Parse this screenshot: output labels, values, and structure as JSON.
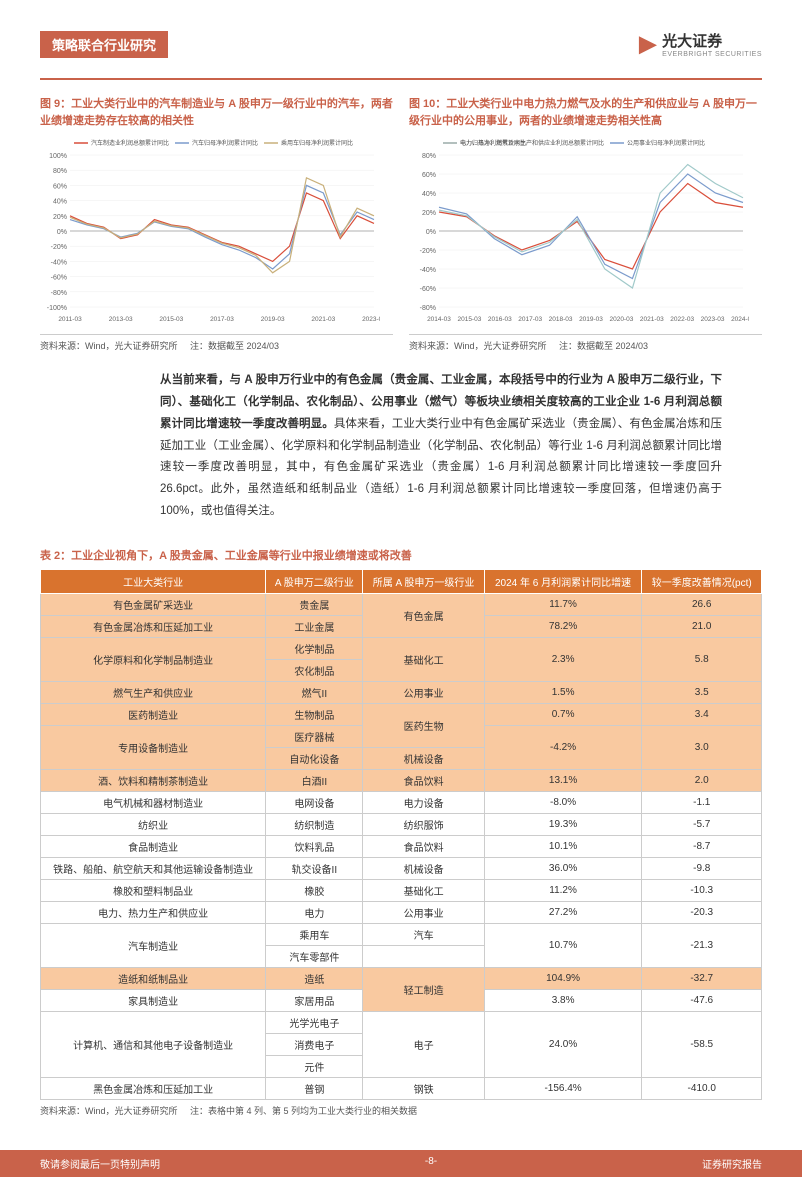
{
  "header": {
    "tag": "策略联合行业研究",
    "logo_text": "光大证券",
    "logo_sub": "EVERBRIGHT SECURITIES"
  },
  "chart_left": {
    "title": "图 9：工业大类行业中的汽车制造业与 A 股申万一级行业中的汽车，两者业绩增速走势存在较高的相关性",
    "legend": [
      "汽车制造业利润总额累计同比",
      "汽车归母净利润累计同比",
      "乘用车归母净利润累计同比"
    ],
    "x_labels": [
      "2011-03",
      "2013-03",
      "2015-03",
      "2017-03",
      "2019-03",
      "2021-03",
      "2023-03"
    ],
    "y_min": -100,
    "y_max": 100,
    "y_step": 20,
    "series": [
      {
        "color": "#d94e3a",
        "width": 1.2,
        "pts": [
          20,
          10,
          5,
          -10,
          -5,
          15,
          8,
          5,
          -5,
          -15,
          -20,
          -30,
          -40,
          -20,
          50,
          40,
          -10,
          20,
          10
        ]
      },
      {
        "color": "#7b9bcc",
        "width": 1.2,
        "pts": [
          15,
          8,
          3,
          -8,
          -3,
          12,
          6,
          3,
          -8,
          -18,
          -25,
          -35,
          -50,
          -30,
          60,
          50,
          -5,
          25,
          15
        ]
      },
      {
        "color": "#c9b07a",
        "width": 1.2,
        "pts": [
          18,
          9,
          4,
          -9,
          -4,
          13,
          7,
          4,
          -6,
          -16,
          -22,
          -32,
          -55,
          -40,
          70,
          60,
          -8,
          30,
          20
        ]
      }
    ],
    "source": "资料来源：Wind，光大证券研究所",
    "note": "注：数据截至 2024/03"
  },
  "chart_right": {
    "title": "图 10：工业大类行业中电力热力燃气及水的生产和供应业与 A 股申万一级行业中的公用事业，两者的业绩增速走势相关性高",
    "legend": [
      "电力、热力、燃气及水生产和供应业利润总额累计同比",
      "公用事业归母净利润累计同比",
      "电力归母净利润累计同比"
    ],
    "x_labels": [
      "2014-03",
      "2015-03",
      "2016-03",
      "2017-03",
      "2018-03",
      "2019-03",
      "2020-03",
      "2021-03",
      "2022-03",
      "2023-03",
      "2024-03"
    ],
    "y_min": -80,
    "y_max": 80,
    "y_step": 20,
    "series": [
      {
        "color": "#d94e3a",
        "width": 1.2,
        "pts": [
          20,
          15,
          -5,
          -20,
          -10,
          10,
          -30,
          -40,
          20,
          50,
          30,
          25
        ]
      },
      {
        "color": "#7b9bcc",
        "width": 1.2,
        "pts": [
          25,
          18,
          -8,
          -25,
          -15,
          15,
          -35,
          -50,
          30,
          60,
          40,
          30
        ]
      },
      {
        "color": "#a0c9c9",
        "width": 1.2,
        "pts": [
          22,
          16,
          -6,
          -22,
          -12,
          12,
          -40,
          -60,
          40,
          70,
          50,
          35
        ]
      }
    ],
    "source": "资料来源：Wind，光大证券研究所",
    "note": "注：数据截至 2024/03"
  },
  "paragraph": {
    "bold": "从当前来看，与 A 股申万行业中的有色金属（贵金属、工业金属，本段括号中的行业为 A 股申万二级行业，下同）、基础化工（化学制品、农化制品）、公用事业（燃气）等板块业绩相关度较高的工业企业 1-6 月利润总额累计同比增速较一季度改善明显。",
    "rest": "具体来看，工业大类行业中有色金属矿采选业（贵金属）、有色金属冶炼和压延加工业（工业金属）、化学原料和化学制品制造业（化学制品、农化制品）等行业 1-6 月利润总额累计同比增速较一季度改善明显，其中，有色金属矿采选业（贵金属）1-6 月利润总额累计同比增速较一季度回升 26.6pct。此外，虽然造纸和纸制品业（造纸）1-6 月利润总额累计同比增速较一季度回落，但增速仍高于 100%，或也值得关注。"
  },
  "table": {
    "title": "表 2：工业企业视角下，A 股贵金属、工业金属等行业中报业绩增速或将改善",
    "columns": [
      "工业大类行业",
      "A 股申万二级行业",
      "所属 A 股申万一级行业",
      "2024 年 6 月利润累计同比增速",
      "较一季度改善情况(pct)"
    ],
    "rows": [
      {
        "cls": "orange",
        "cells": [
          "有色金属矿采选业",
          "贵金属",
          "有色金属",
          "11.7%",
          "26.6"
        ],
        "merge_l1": 2
      },
      {
        "cls": "orange",
        "cells": [
          "有色金属冶炼和压延加工业",
          "工业金属",
          "",
          "78.2%",
          "21.0"
        ]
      },
      {
        "cls": "orange",
        "cells": [
          "化学原料和化学制品制造业",
          "化学制品",
          "基础化工",
          "2.3%",
          "5.8"
        ],
        "merge_l2": 2,
        "merge_l1": 2,
        "merge_v": 2,
        "merge_pct": 2
      },
      {
        "cls": "orange",
        "cells": [
          "",
          "农化制品",
          "",
          "",
          ""
        ]
      },
      {
        "cls": "orange",
        "cells": [
          "燃气生产和供应业",
          "燃气II",
          "公用事业",
          "1.5%",
          "3.5"
        ]
      },
      {
        "cls": "orange",
        "cells": [
          "医药制造业",
          "生物制品",
          "医药生物",
          "0.7%",
          "3.4"
        ],
        "merge_l1": 2
      },
      {
        "cls": "orange",
        "cells": [
          "专用设备制造业",
          "医疗器械",
          "",
          "-4.2%",
          "3.0"
        ],
        "merge_l2": 2,
        "merge_v": 2,
        "merge_pct": 2
      },
      {
        "cls": "orange",
        "cells": [
          "",
          "自动化设备",
          "机械设备",
          "",
          ""
        ]
      },
      {
        "cls": "orange",
        "cells": [
          "酒、饮料和精制茶制造业",
          "白酒II",
          "食品饮料",
          "13.1%",
          "2.0"
        ]
      },
      {
        "cls": "white",
        "cells": [
          "电气机械和器材制造业",
          "电网设备",
          "电力设备",
          "-8.0%",
          "-1.1"
        ]
      },
      {
        "cls": "white",
        "cells": [
          "纺织业",
          "纺织制造",
          "纺织服饰",
          "19.3%",
          "-5.7"
        ]
      },
      {
        "cls": "white",
        "cells": [
          "食品制造业",
          "饮料乳品",
          "食品饮料",
          "10.1%",
          "-8.7"
        ]
      },
      {
        "cls": "white",
        "cells": [
          "铁路、船舶、航空航天和其他运输设备制造业",
          "轨交设备II",
          "机械设备",
          "36.0%",
          "-9.8"
        ]
      },
      {
        "cls": "white",
        "cells": [
          "橡胶和塑料制品业",
          "橡胶",
          "基础化工",
          "11.2%",
          "-10.3"
        ]
      },
      {
        "cls": "white",
        "cells": [
          "电力、热力生产和供应业",
          "电力",
          "公用事业",
          "27.2%",
          "-20.3"
        ]
      },
      {
        "cls": "white",
        "cells": [
          "汽车制造业",
          "乘用车",
          "汽车",
          "10.7%",
          "-21.3"
        ],
        "merge_l2": 2,
        "merge_v": 2,
        "merge_pct": 2
      },
      {
        "cls": "white",
        "cells": [
          "",
          "汽车零部件",
          "",
          "",
          ""
        ]
      },
      {
        "cls": "orange",
        "cells": [
          "造纸和纸制品业",
          "造纸",
          "轻工制造",
          "104.9%",
          "-32.7"
        ],
        "merge_l1": 2
      },
      {
        "cls": "white",
        "cells": [
          "家具制造业",
          "家居用品",
          "",
          "3.8%",
          "-47.6"
        ]
      },
      {
        "cls": "white",
        "cells": [
          "计算机、通信和其他电子设备制造业",
          "光学光电子",
          "电子",
          "24.0%",
          "-58.5"
        ],
        "merge_l2": 3,
        "merge_l1": 3,
        "merge_v": 3,
        "merge_pct": 3
      },
      {
        "cls": "white",
        "cells": [
          "",
          "消费电子",
          "",
          "",
          ""
        ]
      },
      {
        "cls": "white",
        "cells": [
          "",
          "元件",
          "",
          "",
          ""
        ]
      },
      {
        "cls": "white",
        "cells": [
          "黑色金属冶炼和压延加工业",
          "普钢",
          "钢铁",
          "-156.4%",
          "-410.0"
        ]
      }
    ],
    "source": "资料来源：Wind，光大证券研究所",
    "note": "注：表格中第 4 列、第 5 列均为工业大类行业的相关数据"
  },
  "footer": {
    "left": "敬请参阅最后一页特别声明",
    "center": "-8-",
    "right": "证券研究报告"
  },
  "colors": {
    "accent": "#c9624a",
    "th": "#d9732e",
    "row_orange": "#f9c9a0"
  }
}
